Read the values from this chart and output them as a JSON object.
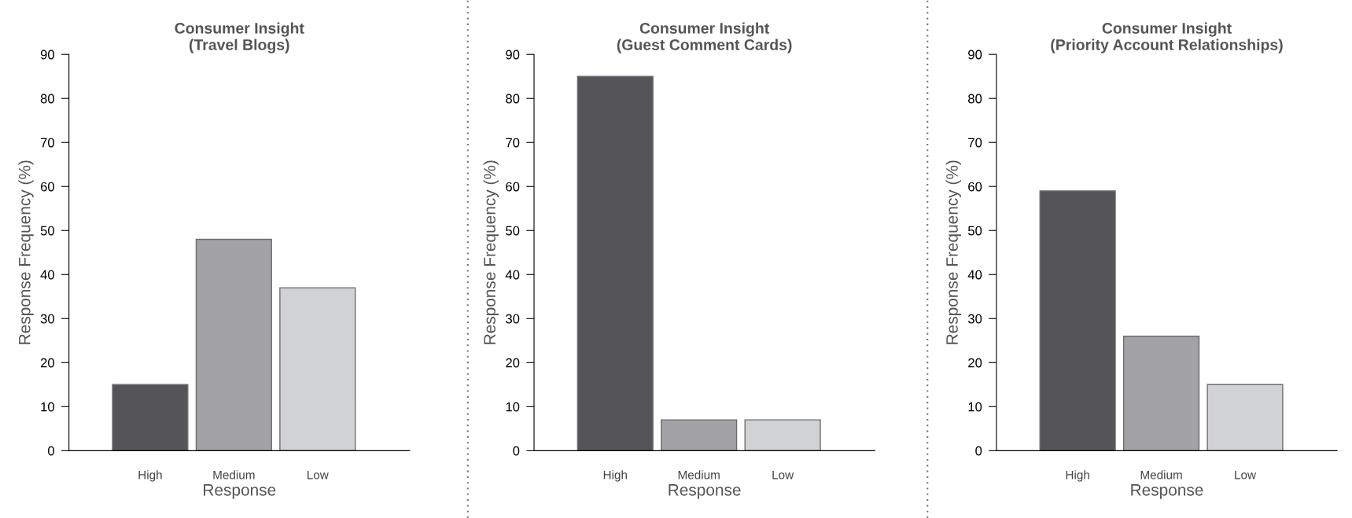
{
  "chart_data": [
    {
      "type": "bar",
      "title": "Consumer Insight\n(Travel Blogs)",
      "xlabel": "Response",
      "ylabel": "Response Frequency (%)",
      "categories": [
        "High",
        "Medium",
        "Low"
      ],
      "values": [
        15,
        48,
        37
      ],
      "colors": [
        "#555559",
        "#a3a2a7",
        "#d1d2d4"
      ],
      "ylim": [
        0,
        90
      ],
      "yticks": [
        0,
        10,
        20,
        30,
        40,
        50,
        60,
        70,
        80,
        90
      ],
      "grid": false,
      "legend": false
    },
    {
      "type": "bar",
      "title": "Consumer Insight\n(Guest Comment Cards)",
      "xlabel": "Response",
      "ylabel": "Response Frequency (%)",
      "categories": [
        "High",
        "Medium",
        "Low"
      ],
      "values": [
        85,
        7,
        7
      ],
      "colors": [
        "#555559",
        "#a3a2a7",
        "#d1d2d4"
      ],
      "ylim": [
        0,
        90
      ],
      "yticks": [
        0,
        10,
        20,
        30,
        40,
        50,
        60,
        70,
        80,
        90
      ],
      "grid": false,
      "legend": false
    },
    {
      "type": "bar",
      "title": "Consumer Insight\n(Priority Account Relationships)",
      "xlabel": "Response",
      "ylabel": "Response Frequency (%)",
      "categories": [
        "High",
        "Medium",
        "Low"
      ],
      "values": [
        59,
        26,
        15
      ],
      "colors": [
        "#555559",
        "#a3a2a7",
        "#d1d2d4"
      ],
      "ylim": [
        0,
        90
      ],
      "yticks": [
        0,
        10,
        20,
        30,
        40,
        50,
        60,
        70,
        80,
        90
      ],
      "grid": false,
      "legend": false
    }
  ]
}
